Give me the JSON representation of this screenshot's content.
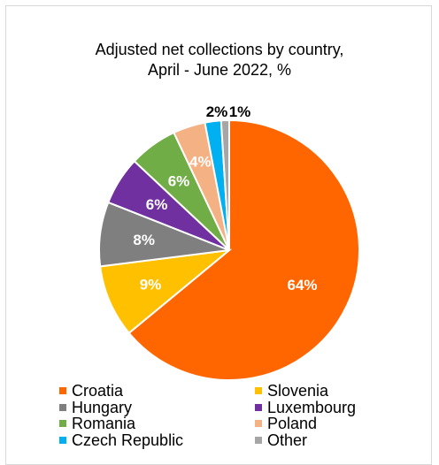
{
  "chart_data": {
    "type": "pie",
    "title_lines": [
      "Adjusted net collections by country,",
      "April - June 2022, %"
    ],
    "slices": [
      {
        "name": "Croatia",
        "value": 64,
        "label": "64%",
        "color": "#ff6600"
      },
      {
        "name": "Slovenia",
        "value": 9,
        "label": "9%",
        "color": "#ffc000"
      },
      {
        "name": "Hungary",
        "value": 8,
        "label": "8%",
        "color": "#7f7f7f"
      },
      {
        "name": "Luxembourg",
        "value": 6,
        "label": "6%",
        "color": "#7030a0"
      },
      {
        "name": "Romania",
        "value": 6,
        "label": "6%",
        "color": "#70ad47"
      },
      {
        "name": "Poland",
        "value": 4,
        "label": "4%",
        "color": "#f4b183"
      },
      {
        "name": "Czech Republic",
        "value": 2,
        "label": "2%",
        "color": "#00b0f0"
      },
      {
        "name": "Other",
        "value": 1,
        "label": "1%",
        "color": "#a6a6a6"
      }
    ],
    "legend_position": "bottom"
  }
}
